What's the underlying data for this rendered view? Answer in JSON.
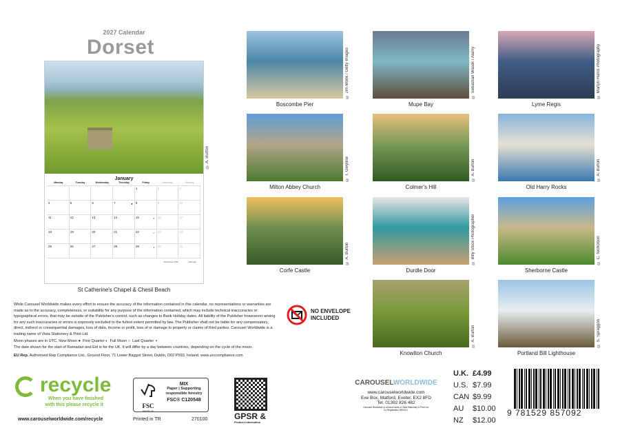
{
  "header": {
    "subtitle": "2027 Calendar",
    "title": "Dorset"
  },
  "main_month": {
    "month": "January",
    "weekdays": [
      "Monday",
      "Tuesday",
      "Wednesday",
      "Thursday",
      "Friday",
      "Saturday",
      "Sunday"
    ],
    "days": [
      "",
      "",
      "",
      "",
      "1",
      "2",
      "3",
      "4",
      "5",
      "6",
      "7",
      "8",
      "9",
      "10",
      "11",
      "12",
      "13",
      "14",
      "15",
      "16",
      "17",
      "18",
      "19",
      "20",
      "21",
      "22",
      "23",
      "24",
      "25",
      "26",
      "27",
      "28",
      "29",
      "30",
      "31"
    ],
    "moons": {
      "7": "●",
      "15": "◐",
      "22": "○",
      "29": "◑"
    },
    "mini_prev": "December 2026",
    "mini_next": "February",
    "caption": "St Catherine's Chapel & Chesil Beach",
    "credit": "© A. Burton"
  },
  "photos": [
    {
      "caption": "Boscombe Pier",
      "credit": "© Jim Monk / Getty Images",
      "colors": [
        "#9cc3e0",
        "#4d86a8",
        "#d8c8a0"
      ]
    },
    {
      "caption": "Mupe Bay",
      "credit": "© Sebastian Wasek / Alamy",
      "colors": [
        "#6a7b92",
        "#7fb7c4",
        "#5e4d3e"
      ]
    },
    {
      "caption": "Lyme Regis",
      "credit": "© Martyn Harris Photography",
      "colors": [
        "#d9a6b4",
        "#3f5d85",
        "#2d3d55"
      ]
    },
    {
      "caption": "Milton Abbey Church",
      "credit": "© T. Gwynne",
      "colors": [
        "#5f9cd8",
        "#b3a589",
        "#4c7a2e"
      ]
    },
    {
      "caption": "Colmer's Hill",
      "credit": "© A. Burton",
      "colors": [
        "#e8c07a",
        "#7a9a58",
        "#2e5a20"
      ]
    },
    {
      "caption": "Old Harry Rocks",
      "credit": "© A. Burton",
      "colors": [
        "#86b4dc",
        "#e6e1d2",
        "#3a78b0"
      ]
    },
    {
      "caption": "Corfe Castle",
      "credit": "© A. Burton",
      "colors": [
        "#f0c060",
        "#6f8f50",
        "#3a5a28"
      ]
    },
    {
      "caption": "Durdle Door",
      "credit": "© Billy Stock Photographer",
      "colors": [
        "#e8e4e6",
        "#2f9aa0",
        "#c9a070"
      ]
    },
    {
      "caption": "Sherborne Castle",
      "credit": "© C. Nicholson",
      "colors": [
        "#5ea0e0",
        "#c8b88a",
        "#4d8a2c"
      ]
    },
    {
      "caption": "Knowlton Church",
      "credit": "© A. Burton",
      "colors": [
        "#a8a070",
        "#7a9a3a",
        "#4a6a20"
      ]
    },
    {
      "caption": "Portland Bill Lighthouse",
      "credit": "© S. Spraggon",
      "colors": [
        "#9cc4e4",
        "#e8eef2",
        "#6a5a3a"
      ]
    }
  ],
  "no_envelope": {
    "line1": "NO ENVELOPE",
    "line2": "INCLUDED"
  },
  "disclaimer": {
    "text": "While Carousel Worldwide makes every effort to ensure the accuracy of the information contained in this calendar, no representations or warranties are made as to the accuracy, completeness, or suitability for any purpose of the information contained, which may include technical inaccuracies or typographical errors, that may be outside of the Publisher's control, such as changes to Bank Holiday dates. All liability of the Publisher howsoever arising for any such inaccuracies or errors is expressly excluded to the fullest extent permitted by law. The Publisher shall not be liable for any compensatory, direct, indirect or consequential damages, loss of data, income or profit, loss of or damage to property or claims of third parties. Carousel Worldwide is a trading name of Vista Stationery & Print Ltd.",
    "moon_prefix": "Moon phases are in UTC. New Moon",
    "first_quarter": "First Quarter",
    "full_moon": "Full Moon",
    "last_quarter": "Last Quarter",
    "ramadan": "The date shown for the start of Ramadan and Eid is for the UK. It will differ by a day between countries, depending on the cycle of the moon.",
    "eu_label": "EU Rep.",
    "eu_text": "Authorised Rep Compliance Ltd., Ground Floor, 71 Lower Baggot Street, Dublin, D02 P593, Ireland. www.arccompliance.com"
  },
  "recycle": {
    "word": "recycle",
    "line1": "When you have finished",
    "line2": "with this please recycle it",
    "url": "www.carouselworldwide.com/recycle"
  },
  "fsc": {
    "mix": "MIX",
    "line1": "Paper | Supporting",
    "line2": "responsible forestry",
    "code": "FSC® C120548",
    "brand": "FSC",
    "site": "www.fsc.org",
    "printed": "Printed in TR",
    "number": "270100"
  },
  "gpsr": {
    "title": "GPSR &",
    "sub": "Product information"
  },
  "publisher": {
    "logo_a": "CAROUSEL",
    "logo_b": "WORLDWIDE",
    "url": "www.carouselworldwide.com",
    "address": "Exe Box, Matford, Exeter, EX2 8FD",
    "tel": "Tel. 01392 826 482",
    "note1": "Carousel Worldwide is a brand name of Vista Stationery & Print Ltd.",
    "note2": "Co Registration 5900471."
  },
  "prices": [
    {
      "region": "U.K.",
      "price": "£4.99"
    },
    {
      "region": "U.S.",
      "price": "$7.99"
    },
    {
      "region": "CAN",
      "price": "$9.99"
    },
    {
      "region": "AU",
      "price": "$10.00"
    },
    {
      "region": "NZ",
      "price": "$12.00"
    }
  ],
  "barcode": {
    "digits": "9 781529 857092"
  }
}
